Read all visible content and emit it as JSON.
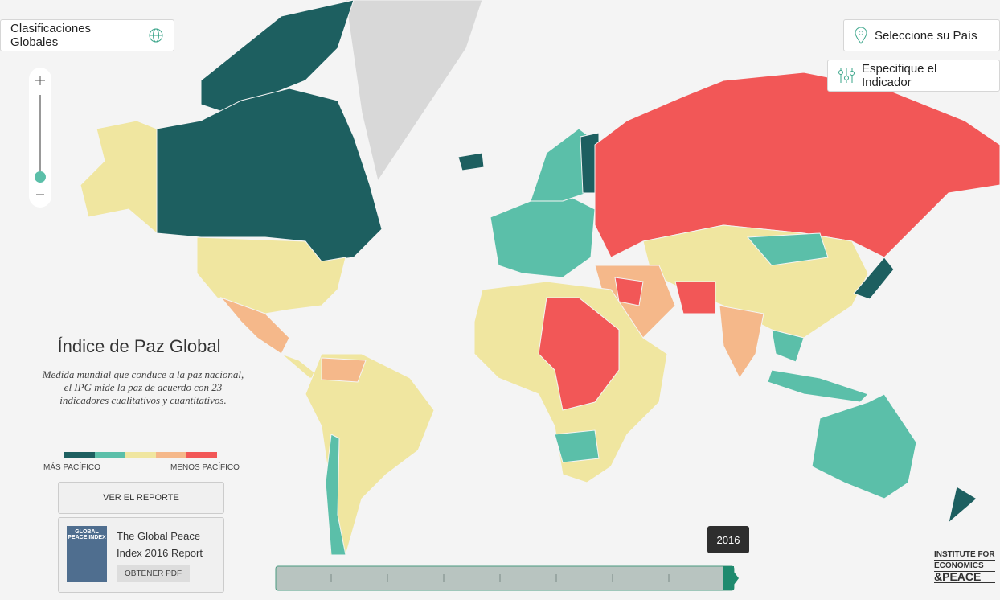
{
  "header": {
    "rankings_button": "Clasificaciones Globales",
    "country_button": "Seleccione su País",
    "indicator_button": "Especifique el Indicador"
  },
  "panel": {
    "title": "Índice de Paz Global",
    "description": "Medida mundial que conduce a la paz nacional, el IPG mide la paz de acuerdo con 23 indicadores cualitativos y cuantitativos.",
    "legend": {
      "colors": [
        "#1d5f60",
        "#5bbfa9",
        "#f0e6a0",
        "#f5b88a",
        "#f25757"
      ],
      "low_label": "MÁS PACÍFICO",
      "high_label": "MENOS PACÍFICO"
    },
    "report_button": "VER EL REPORTE",
    "report_card": {
      "cover": "GLOBAL PEACE INDEX",
      "title": "The Global Peace Index 2016 Report",
      "pdf_button": "OBTENER PDF"
    }
  },
  "timeline": {
    "selected_year": "2016"
  },
  "logo": {
    "lines": [
      "INSTITUTE FOR",
      "ECONOMICS",
      "&PEACE"
    ]
  }
}
